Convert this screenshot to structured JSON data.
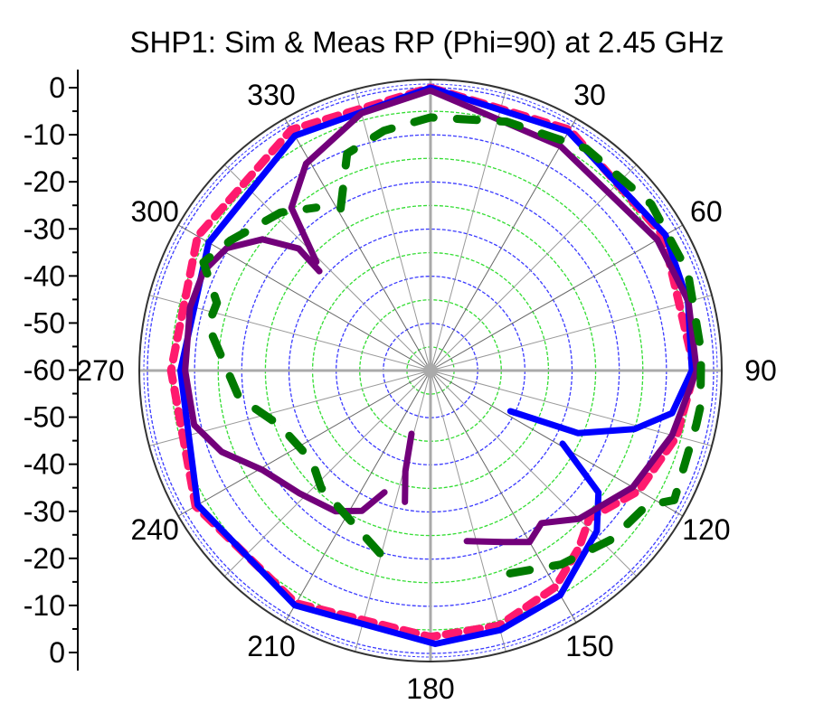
{
  "chart_data": {
    "type": "polar",
    "title": "SHP1: Sim & Meas RP (Phi=90) at 2.45 GHz",
    "radial_axis": {
      "range_db": [
        -60,
        0
      ],
      "tick_labels": [
        "0",
        "-10",
        "-20",
        "-30",
        "-40",
        "-50",
        "-60",
        "-50",
        "-40",
        "-30",
        "-20",
        "-10",
        "0"
      ],
      "tick_values": [
        0,
        -10,
        -20,
        -30,
        -40,
        -50,
        -60,
        -50,
        -40,
        -30,
        -20,
        -10,
        0
      ],
      "ring_step_db": 5
    },
    "angle_axis": {
      "zero": "top",
      "direction": "clockwise",
      "tick_labels": [
        "30",
        "60",
        "90",
        "120",
        "150",
        "180",
        "210",
        "240",
        "270",
        "300",
        "330"
      ],
      "tick_values": [
        30,
        60,
        90,
        120,
        150,
        180,
        210,
        240,
        270,
        300,
        330
      ]
    },
    "grid": true,
    "colors": {
      "blue": "#0000ff",
      "pink": "#ff1a6e",
      "purple": "#72007a",
      "green": "#007a00",
      "ring_blue": "#3a3aff",
      "ring_green": "#33dd33",
      "spoke": "#888888"
    },
    "series": [
      {
        "color": "#ff1a6e",
        "style": "dashed",
        "segments": [
          [
            [
              0,
              0
            ],
            [
              30,
              -1
            ],
            [
              60,
              -3
            ],
            [
              90,
              -4
            ],
            [
              105,
              -6
            ],
            [
              120,
              -9
            ],
            [
              133,
              -14
            ],
            [
              140,
              -11
            ],
            [
              150,
              -7
            ],
            [
              165,
              -4
            ],
            [
              180,
              -3.5
            ],
            [
              210,
              -3
            ],
            [
              240,
              -2.5
            ],
            [
              270,
              -5
            ],
            [
              300,
              -3
            ],
            [
              330,
              -1
            ],
            [
              360,
              0
            ]
          ]
        ]
      },
      {
        "color": "#0000ff",
        "style": "solid",
        "segments": [
          [
            [
              0,
              0
            ],
            [
              30,
              -1.5
            ],
            [
              60,
              -2.5
            ],
            [
              75,
              -3.5
            ],
            [
              90,
              -4.6
            ],
            [
              100,
              -8
            ],
            [
              106,
              -15
            ],
            [
              113,
              -26
            ],
            [
              117,
              -41
            ]
          ],
          [
            [
              119,
              -28
            ],
            [
              126,
              -16
            ],
            [
              134,
              -11
            ],
            [
              150,
              -5
            ],
            [
              165,
              -3
            ],
            [
              179,
              -2
            ],
            [
              210,
              -2.5
            ],
            [
              240,
              -3
            ],
            [
              270,
              -7
            ],
            [
              300,
              -5.7
            ],
            [
              330,
              -2.5
            ],
            [
              360,
              0
            ]
          ]
        ]
      },
      {
        "color": "#72007a",
        "style": "solid",
        "segments": [
          [
            [
              313.6,
              -26.6
            ],
            [
              319.5,
              -14.6
            ],
            [
              329,
              -8.8
            ],
            [
              345,
              -3.5
            ],
            [
              360,
              -0.6
            ],
            [
              390,
              -5
            ],
            [
              420,
              -4.5
            ],
            [
              435,
              -3.4
            ],
            [
              450,
              -3.6
            ],
            [
              465,
              -7
            ],
            [
              480,
              -10.5
            ],
            [
              495,
              -15.5
            ],
            [
              504,
              -20
            ],
            [
              510,
              -18
            ],
            [
              517,
              -20.5
            ],
            [
              528,
              -23
            ]
          ],
          [
            [
              311.8,
              -28.4
            ],
            [
              312.8,
              -21.9
            ],
            [
              308,
              -14.8
            ],
            [
              301,
              -9.6
            ],
            [
              293.7,
              -7.5
            ],
            [
              284.7,
              -7.3
            ],
            [
              270,
              -8
            ],
            [
              257,
              -8.6
            ],
            [
              248.7,
              -12.5
            ],
            [
              239.4,
              -18.6
            ],
            [
              227,
              -21.9
            ],
            [
              214,
              -24
            ],
            [
              206,
              -26.9
            ],
            [
              200.7,
              -32.4
            ]
          ],
          [
            [
              196.7,
              -46
            ],
            [
              194,
              -38
            ],
            [
              191,
              -31.6
            ]
          ]
        ]
      },
      {
        "color": "#007a00",
        "style": "dashed",
        "segments": [
          [
            [
              331,
              -20.7
            ],
            [
              339,
              -10.7
            ],
            [
              349,
              -8.2
            ],
            [
              360,
              -6.3
            ],
            [
              377,
              -4.8
            ],
            [
              395,
              -2.5
            ],
            [
              413,
              -1.4
            ],
            [
              429,
              -1.6
            ],
            [
              446,
              -2.5
            ],
            [
              457.6,
              -2.3
            ],
            [
              461.5,
              -2.5
            ],
            [
              478,
              -1.5
            ],
            [
              482,
              -6
            ],
            [
              493,
              -7.5
            ],
            [
              506,
              -10.4
            ],
            [
              520,
              -14
            ]
          ],
          [
            [
              195.5,
              -19.8
            ],
            [
              203,
              -22.6
            ],
            [
              223,
              -26
            ],
            [
              232.6,
              -28.4
            ],
            [
              250,
              -26
            ],
            [
              262,
              -19
            ],
            [
              281.5,
              -11.9
            ],
            [
              287.6,
              -12.5
            ],
            [
              295.5,
              -6.7
            ],
            [
              303,
              -9.4
            ],
            [
              316.5,
              -13.8
            ],
            [
              325,
              -17.8
            ]
          ]
        ]
      }
    ]
  }
}
